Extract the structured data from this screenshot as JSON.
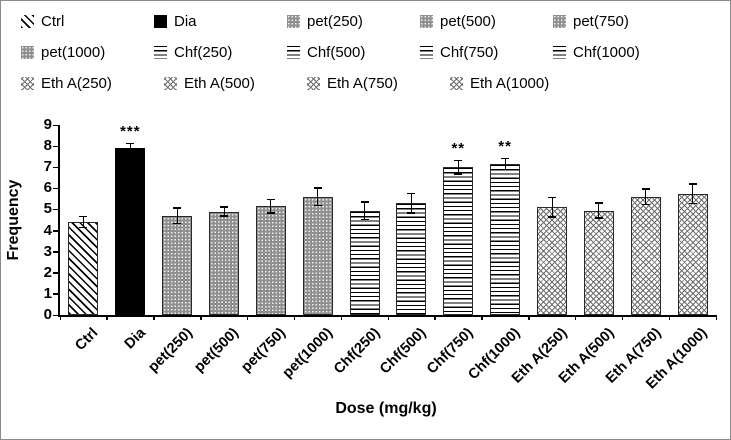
{
  "chart_data": {
    "type": "bar",
    "title": "",
    "xlabel": "Dose (mg/kg)",
    "ylabel": "Frequency",
    "ylim": [
      0,
      9
    ],
    "yticks": [
      0,
      1,
      2,
      3,
      4,
      5,
      6,
      7,
      8,
      9
    ],
    "grid": false,
    "legend_position": "top",
    "categories": [
      "Ctrl",
      "Dia",
      "pet(250)",
      "pet(500)",
      "pet(750)",
      "pet(1000)",
      "Chf(250)",
      "Chf(500)",
      "Chf(750)",
      "Chf(1000)",
      "Eth A(250)",
      "Eth A(500)",
      "Eth A(750)",
      "Eth A(1000)"
    ],
    "values": [
      4.4,
      7.9,
      4.7,
      4.9,
      5.15,
      5.6,
      4.95,
      5.3,
      7.0,
      7.15,
      5.1,
      4.95,
      5.6,
      5.75
    ],
    "errors": [
      0.3,
      0.25,
      0.4,
      0.25,
      0.35,
      0.45,
      0.45,
      0.5,
      0.35,
      0.3,
      0.5,
      0.4,
      0.4,
      0.5
    ],
    "annotations": [
      "",
      "***",
      "",
      "",
      "",
      "",
      "",
      "",
      "**",
      "**",
      "",
      "",
      "",
      ""
    ],
    "patterns": [
      "diagonal",
      "solid",
      "dots",
      "dots",
      "dots",
      "dots",
      "hlines",
      "hlines",
      "hlines",
      "hlines",
      "zigzag",
      "zigzag",
      "zigzag",
      "zigzag"
    ],
    "colors": {
      "bar_outline": "#2a2a2a",
      "solid_fill": "#000000",
      "dots_fill": "#8f8f8f"
    }
  }
}
